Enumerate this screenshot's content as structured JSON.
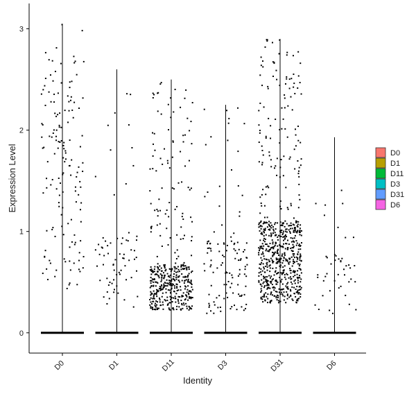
{
  "chart_data": {
    "type": "violin-jitter",
    "xlabel": "Identity",
    "ylabel": "Expression Level",
    "ylim": [
      -0.2,
      3.25
    ],
    "yticks": [
      0,
      1,
      2,
      3
    ],
    "categories": [
      "D0",
      "D1",
      "D11",
      "D3",
      "D31",
      "D6"
    ],
    "series": [
      {
        "name": "D0",
        "color": "#F8766D",
        "max": 3.05,
        "nonzero_points": 150,
        "nonzero_range": [
          0.3,
          3.05
        ],
        "density_center": 1.5
      },
      {
        "name": "D1",
        "color": "#B79F00",
        "max": 2.6,
        "nonzero_points": 70,
        "nonzero_range": [
          0.2,
          2.6
        ],
        "density_center": 0.6
      },
      {
        "name": "D11",
        "color": "#00BA38",
        "max": 2.5,
        "nonzero_points": 450,
        "nonzero_range": [
          0.2,
          2.5
        ],
        "density_center": 0.45
      },
      {
        "name": "D3",
        "color": "#00BFC4",
        "max": 2.25,
        "nonzero_points": 120,
        "nonzero_range": [
          0.15,
          2.25
        ],
        "density_center": 0.55
      },
      {
        "name": "D31",
        "color": "#619CFF",
        "max": 2.9,
        "nonzero_points": 700,
        "nonzero_range": [
          0.25,
          2.9
        ],
        "density_center": 0.7
      },
      {
        "name": "D6",
        "color": "#F564E3",
        "max": 1.93,
        "nonzero_points": 45,
        "nonzero_range": [
          0.15,
          1.93
        ],
        "density_center": 0.5
      }
    ],
    "legend": {
      "position": "right",
      "entries": [
        "D0",
        "D1",
        "D11",
        "D3",
        "D31",
        "D6"
      ]
    },
    "grid": false
  }
}
